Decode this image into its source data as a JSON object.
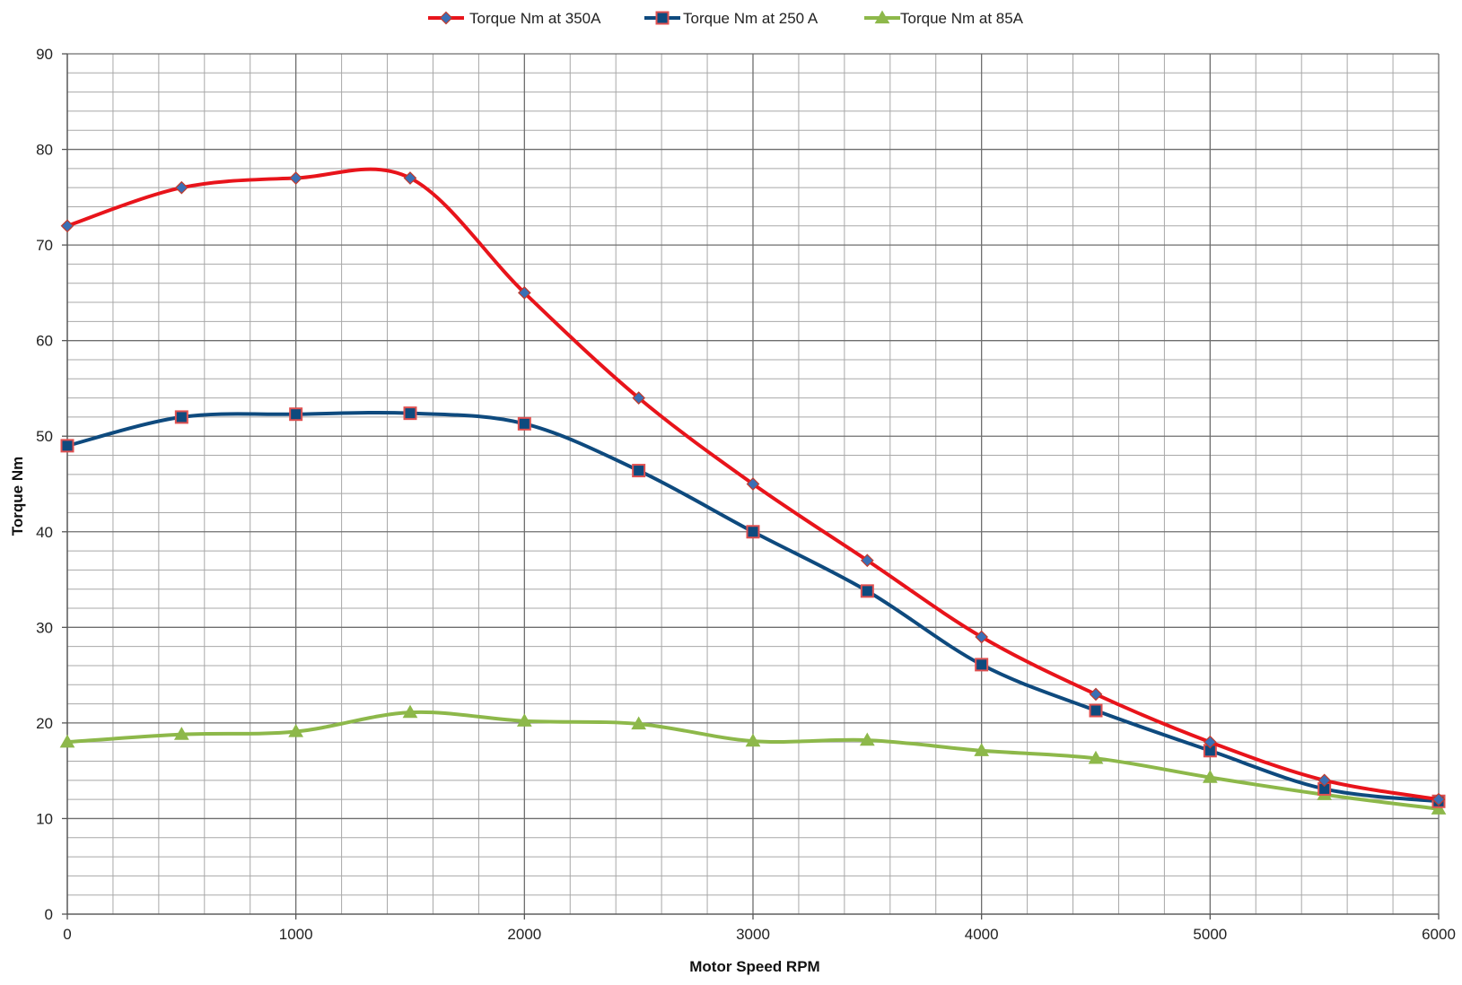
{
  "chart_data": {
    "type": "line",
    "smooth": true,
    "title": "",
    "xlabel": "Motor Speed RPM",
    "ylabel": "Torque Nm",
    "xlim": [
      0,
      6000
    ],
    "ylim": [
      0,
      90
    ],
    "x_major_ticks": [
      0,
      1000,
      2000,
      3000,
      4000,
      5000,
      6000
    ],
    "x_tick_labels": [
      "0",
      "1000",
      "2000",
      "3000",
      "4000",
      "5000",
      "6000"
    ],
    "x_minor_step": 200,
    "y_major_ticks": [
      0,
      10,
      20,
      30,
      40,
      50,
      60,
      70,
      80,
      90
    ],
    "y_tick_labels": [
      "0",
      "10",
      "20",
      "30",
      "40",
      "50",
      "60",
      "70",
      "80",
      "90"
    ],
    "y_minor_step": 2,
    "grid": true,
    "legend_position": "top-center",
    "x": [
      0,
      500,
      1000,
      1500,
      2000,
      2500,
      3000,
      3500,
      4000,
      4500,
      5000,
      5500,
      6000
    ],
    "series": [
      {
        "name": "Torque Nm at 350A",
        "color": "#e8141b",
        "marker": "diamond",
        "marker_fill": "#3a6fb5",
        "marker_stroke": "#c0392b",
        "values": [
          72,
          76,
          77,
          77,
          65,
          54,
          45,
          37,
          29,
          23,
          18,
          14,
          12
        ]
      },
      {
        "name": "Torque Nm at 250 A",
        "color": "#0e4a7e",
        "marker": "square",
        "marker_fill": "#0e4a7e",
        "marker_stroke": "#e05050",
        "values": [
          49,
          52,
          52.3,
          52.4,
          51.3,
          46.4,
          40,
          33.8,
          26.1,
          21.3,
          17.1,
          13.1,
          11.8
        ]
      },
      {
        "name": "Torque Nm at 85A",
        "color": "#8db84a",
        "marker": "triangle",
        "marker_fill": "#8db84a",
        "marker_stroke": "#8db84a",
        "values": [
          18,
          18.8,
          19.1,
          21.1,
          20.2,
          19.9,
          18.1,
          18.2,
          17.1,
          16.3,
          14.3,
          12.5,
          11
        ]
      }
    ]
  }
}
